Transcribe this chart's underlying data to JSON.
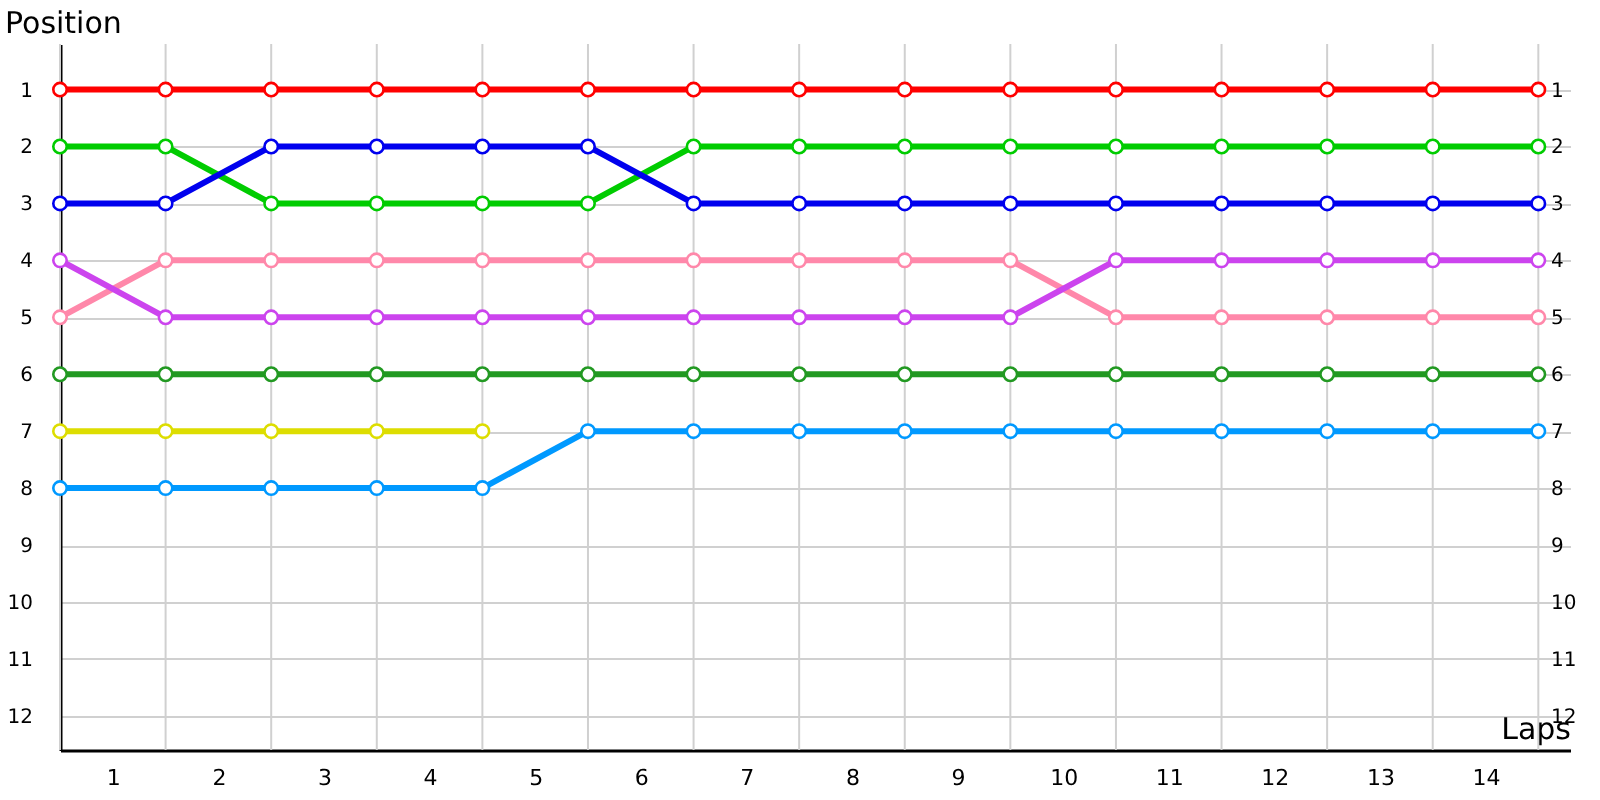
{
  "chart_data": {
    "type": "line",
    "xlabel": "Laps",
    "ylabel": "Position",
    "marker": "circle",
    "grid": true,
    "x": [
      0,
      1,
      2,
      3,
      4,
      5,
      6,
      7,
      8,
      9,
      10,
      11,
      12,
      13,
      14
    ],
    "xlim": [
      0,
      14.3
    ],
    "xticks": [
      {
        "value": 0,
        "label": null
      },
      {
        "value": 0.5,
        "label": "1"
      },
      {
        "value": 1,
        "label": null
      },
      {
        "value": 1.5,
        "label": "2"
      },
      {
        "value": 2,
        "label": null
      },
      {
        "value": 2.5,
        "label": "3"
      },
      {
        "value": 3,
        "label": null
      },
      {
        "value": 3.5,
        "label": "4"
      },
      {
        "value": 4,
        "label": null
      },
      {
        "value": 4.5,
        "label": "5"
      },
      {
        "value": 5,
        "label": null
      },
      {
        "value": 5.5,
        "label": "6"
      },
      {
        "value": 6,
        "label": null
      },
      {
        "value": 6.5,
        "label": "7"
      },
      {
        "value": 7,
        "label": null
      },
      {
        "value": 7.5,
        "label": "8"
      },
      {
        "value": 8,
        "label": null
      },
      {
        "value": 8.5,
        "label": "9"
      },
      {
        "value": 9,
        "label": null
      },
      {
        "value": 9.5,
        "label": "10"
      },
      {
        "value": 10,
        "label": null
      },
      {
        "value": 10.5,
        "label": "11"
      },
      {
        "value": 11,
        "label": null
      },
      {
        "value": 11.5,
        "label": "12"
      },
      {
        "value": 12,
        "label": null
      },
      {
        "value": 12.5,
        "label": "13"
      },
      {
        "value": 13,
        "label": null
      },
      {
        "value": 13.5,
        "label": "14"
      },
      {
        "value": 14,
        "label": null
      }
    ],
    "ylim": [
      12.6,
      0.2
    ],
    "yticks": [
      1,
      2,
      3,
      4,
      5,
      6,
      7,
      8,
      9,
      10,
      11,
      12
    ],
    "y2lim": [
      12.6,
      0.2
    ],
    "y2ticks": [
      1,
      2,
      3,
      4,
      5,
      6,
      7,
      8,
      9,
      10,
      11,
      12
    ],
    "series": [
      {
        "color": "#ff0000",
        "values": [
          1,
          1,
          1,
          1,
          1,
          1,
          1,
          1,
          1,
          1,
          1,
          1,
          1,
          1,
          1
        ]
      },
      {
        "color": "#00cc00",
        "values": [
          2,
          2,
          3,
          3,
          3,
          3,
          2,
          2,
          2,
          2,
          2,
          2,
          2,
          2,
          2
        ]
      },
      {
        "color": "#0000ee",
        "values": [
          3,
          3,
          2,
          2,
          2,
          2,
          3,
          3,
          3,
          3,
          3,
          3,
          3,
          3,
          3
        ]
      },
      {
        "color": "#ff88aa",
        "values": [
          5,
          4,
          4,
          4,
          4,
          4,
          4,
          4,
          4,
          4,
          5,
          5,
          5,
          5,
          5
        ]
      },
      {
        "color": "#cc44ee",
        "values": [
          4,
          5,
          5,
          5,
          5,
          5,
          5,
          5,
          5,
          5,
          4,
          4,
          4,
          4,
          4
        ]
      },
      {
        "color": "#229922",
        "values": [
          6,
          6,
          6,
          6,
          6,
          6,
          6,
          6,
          6,
          6,
          6,
          6,
          6,
          6,
          6
        ]
      },
      {
        "color": "#dddd00",
        "values": [
          7,
          7,
          7,
          7,
          7,
          null,
          null,
          null,
          null,
          null,
          null,
          null,
          null,
          null,
          null
        ]
      },
      {
        "color": "#0099ff",
        "values": [
          8,
          8,
          8,
          8,
          8,
          7,
          7,
          7,
          7,
          7,
          7,
          7,
          7,
          7,
          7
        ]
      }
    ]
  }
}
